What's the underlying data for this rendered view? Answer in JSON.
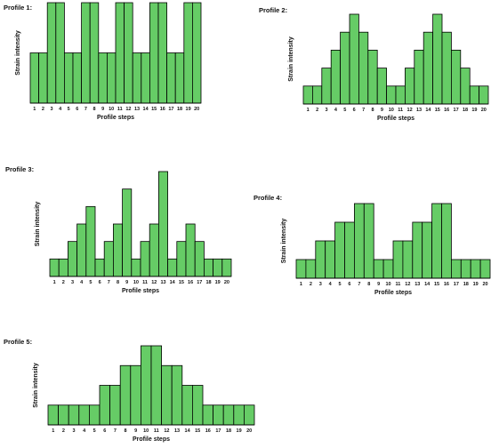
{
  "chart_data": [
    {
      "type": "bar",
      "title": "Profile 1:",
      "xlabel": "Profile steps",
      "ylabel": "Strain intensity",
      "categories": [
        "1",
        "2",
        "3",
        "4",
        "5",
        "6",
        "7",
        "8",
        "9",
        "10",
        "11",
        "12",
        "13",
        "14",
        "15",
        "16",
        "17",
        "18",
        "19",
        "20"
      ],
      "values": [
        2,
        2,
        4,
        4,
        2,
        2,
        4,
        4,
        2,
        2,
        4,
        4,
        2,
        2,
        4,
        4,
        2,
        2,
        4,
        4
      ],
      "ylim": [
        0,
        4
      ],
      "grid": false,
      "bar_color": "#66cc66"
    },
    {
      "type": "bar",
      "title": "Profile 2:",
      "xlabel": "Profile steps",
      "ylabel": "Strain intensity",
      "categories": [
        "1",
        "2",
        "3",
        "4",
        "5",
        "6",
        "7",
        "8",
        "9",
        "10",
        "11",
        "12",
        "13",
        "14",
        "15",
        "16",
        "17",
        "18",
        "19",
        "20"
      ],
      "values": [
        1,
        1,
        2,
        3,
        4,
        5,
        4,
        3,
        2,
        1,
        1,
        2,
        3,
        4,
        5,
        4,
        3,
        2,
        1,
        1
      ],
      "ylim": [
        0,
        5
      ],
      "grid": false,
      "bar_color": "#66cc66"
    },
    {
      "type": "bar",
      "title": "Profile 3:",
      "xlabel": "Profile steps",
      "ylabel": "Strain intensity",
      "categories": [
        "1",
        "2",
        "3",
        "4",
        "5",
        "6",
        "7",
        "8",
        "9",
        "10",
        "11",
        "12",
        "13",
        "14",
        "15",
        "16",
        "17",
        "18",
        "19",
        "20"
      ],
      "values": [
        1,
        1,
        2,
        3,
        4,
        1,
        2,
        3,
        5,
        1,
        2,
        3,
        6,
        1,
        2,
        3,
        2,
        1,
        1,
        1
      ],
      "ylim": [
        0,
        6
      ],
      "grid": false,
      "bar_color": "#66cc66"
    },
    {
      "type": "bar",
      "title": "Profile 4:",
      "xlabel": "Profile steps",
      "ylabel": "Strain intensity",
      "categories": [
        "1",
        "2",
        "3",
        "4",
        "5",
        "6",
        "7",
        "8",
        "9",
        "10",
        "11",
        "12",
        "13",
        "14",
        "15",
        "16",
        "17",
        "18",
        "19",
        "20"
      ],
      "values": [
        1,
        1,
        2,
        2,
        3,
        3,
        4,
        4,
        1,
        1,
        2,
        2,
        3,
        3,
        4,
        4,
        1,
        1,
        1,
        1
      ],
      "ylim": [
        0,
        4
      ],
      "grid": false,
      "bar_color": "#66cc66"
    },
    {
      "type": "bar",
      "title": "Profile 5:",
      "xlabel": "Profile steps",
      "ylabel": "Strain intensity",
      "categories": [
        "1",
        "2",
        "3",
        "4",
        "5",
        "6",
        "7",
        "8",
        "9",
        "10",
        "11",
        "12",
        "13",
        "14",
        "15",
        "16",
        "17",
        "18",
        "19",
        "20"
      ],
      "values": [
        1,
        1,
        1,
        1,
        1,
        2,
        2,
        3,
        3,
        4,
        4,
        3,
        3,
        2,
        2,
        1,
        1,
        1,
        1,
        1
      ],
      "ylim": [
        0,
        4
      ],
      "grid": false,
      "bar_color": "#66cc66"
    }
  ]
}
